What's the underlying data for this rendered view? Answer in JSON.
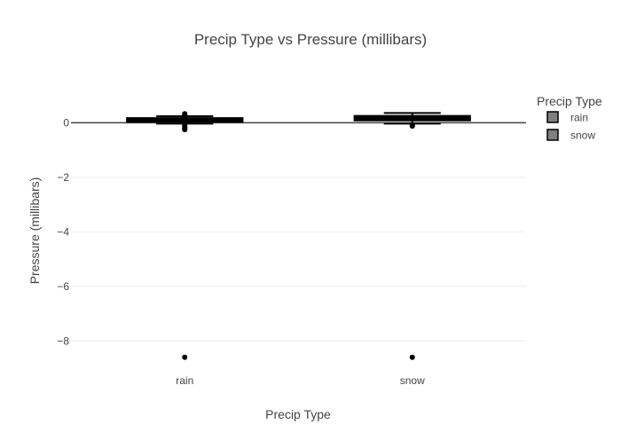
{
  "chart_data": {
    "type": "box",
    "title": "Precip Type vs Pressure (millibars)",
    "xlabel": "Precip Type",
    "ylabel": "Pressure (millibars)",
    "categories": [
      "rain",
      "snow"
    ],
    "ylim": [
      -9,
      1.25
    ],
    "yticks": [
      0,
      -2,
      -4,
      -6,
      -8
    ],
    "ytick_labels": [
      "0",
      "−2",
      "−4",
      "−6",
      "−8"
    ],
    "zero_line": true,
    "grid": true,
    "legend": {
      "title": "Precip Type",
      "placement": "top-right",
      "entries": [
        "rain",
        "snow"
      ]
    },
    "series": [
      {
        "name": "rain",
        "category": "rain",
        "q1": 0.07,
        "median": 0.11,
        "q3": 0.14,
        "whisker_low": -0.03,
        "whisker_high": 0.24,
        "outliers": [
          0.33,
          0.28,
          0.26,
          -0.1,
          -0.15,
          -0.18,
          -0.22,
          -0.25,
          -8.6
        ]
      },
      {
        "name": "snow",
        "category": "snow",
        "q1": 0.12,
        "median": 0.17,
        "q3": 0.22,
        "whisker_low": -0.03,
        "whisker_high": 0.36,
        "outliers": [
          -0.08,
          -0.12,
          -8.6
        ]
      }
    ],
    "colors": {
      "box_fill": "#7f7f7f",
      "box_line": "#000000",
      "grid": "#eeeeee",
      "zero_line": "#444444",
      "text": "#444444"
    }
  }
}
